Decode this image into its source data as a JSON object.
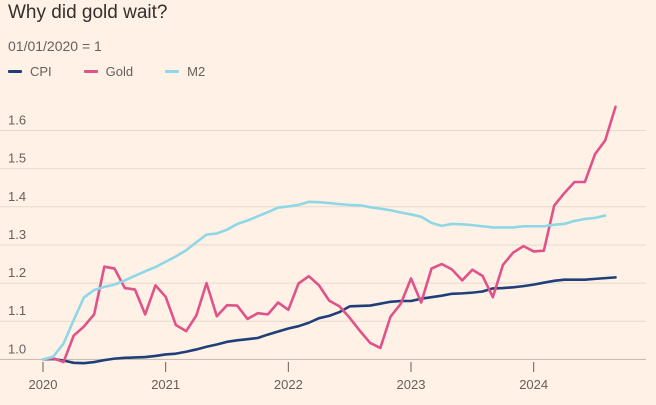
{
  "chart_data": {
    "type": "line",
    "title": "Why did gold wait?",
    "subtitle": "01/01/2020 = 1",
    "xlabel": "",
    "ylabel": "",
    "xlim": [
      2020.0,
      2024.72
    ],
    "ylim": [
      0.98,
      1.68
    ],
    "x_ticks": [
      2020,
      2021,
      2022,
      2023,
      2024
    ],
    "y_ticks": [
      1.0,
      1.1,
      1.2,
      1.3,
      1.4,
      1.5,
      1.6
    ],
    "grid": "horizontal",
    "legend": "top-left",
    "series": [
      {
        "name": "CPI",
        "color": "#1f3f7a",
        "x": [
          2020.0,
          2020.083,
          2020.167,
          2020.25,
          2020.333,
          2020.417,
          2020.5,
          2020.583,
          2020.667,
          2020.75,
          2020.833,
          2020.917,
          2021.0,
          2021.083,
          2021.167,
          2021.25,
          2021.333,
          2021.417,
          2021.5,
          2021.583,
          2021.667,
          2021.75,
          2021.833,
          2021.917,
          2022.0,
          2022.083,
          2022.167,
          2022.25,
          2022.333,
          2022.417,
          2022.5,
          2022.583,
          2022.667,
          2022.75,
          2022.833,
          2022.917,
          2023.0,
          2023.083,
          2023.167,
          2023.25,
          2023.333,
          2023.417,
          2023.5,
          2023.583,
          2023.667,
          2023.75,
          2023.833,
          2023.917,
          2024.0,
          2024.083,
          2024.167,
          2024.25,
          2024.333,
          2024.417,
          2024.5,
          2024.583,
          2024.667
        ],
        "values": [
          1.0,
          1.001,
          0.997,
          0.991,
          0.99,
          0.993,
          0.998,
          1.002,
          1.004,
          1.005,
          1.006,
          1.009,
          1.013,
          1.015,
          1.02,
          1.026,
          1.033,
          1.039,
          1.046,
          1.05,
          1.053,
          1.056,
          1.065,
          1.073,
          1.081,
          1.087,
          1.096,
          1.108,
          1.114,
          1.124,
          1.139,
          1.14,
          1.141,
          1.146,
          1.151,
          1.153,
          1.153,
          1.159,
          1.163,
          1.167,
          1.172,
          1.173,
          1.175,
          1.178,
          1.186,
          1.187,
          1.189,
          1.192,
          1.196,
          1.201,
          1.206,
          1.209,
          1.209,
          1.209,
          1.211,
          1.213,
          1.215
        ]
      },
      {
        "name": "Gold",
        "color": "#e0538a",
        "x": [
          2020.0,
          2020.083,
          2020.167,
          2020.25,
          2020.333,
          2020.417,
          2020.5,
          2020.583,
          2020.667,
          2020.75,
          2020.833,
          2020.917,
          2021.0,
          2021.083,
          2021.167,
          2021.25,
          2021.333,
          2021.417,
          2021.5,
          2021.583,
          2021.667,
          2021.75,
          2021.833,
          2021.917,
          2022.0,
          2022.083,
          2022.167,
          2022.25,
          2022.333,
          2022.417,
          2022.5,
          2022.583,
          2022.667,
          2022.75,
          2022.833,
          2022.917,
          2023.0,
          2023.083,
          2023.167,
          2023.25,
          2023.333,
          2023.417,
          2023.5,
          2023.583,
          2023.667,
          2023.75,
          2023.833,
          2023.917,
          2024.0,
          2024.083,
          2024.167,
          2024.25,
          2024.333,
          2024.417,
          2024.5,
          2024.583,
          2024.667
        ],
        "values": [
          1.0,
          1.003,
          0.993,
          1.062,
          1.086,
          1.118,
          1.243,
          1.238,
          1.187,
          1.183,
          1.118,
          1.194,
          1.164,
          1.09,
          1.074,
          1.115,
          1.2,
          1.113,
          1.142,
          1.141,
          1.106,
          1.121,
          1.118,
          1.149,
          1.13,
          1.199,
          1.218,
          1.194,
          1.154,
          1.139,
          1.109,
          1.075,
          1.043,
          1.03,
          1.112,
          1.146,
          1.212,
          1.149,
          1.238,
          1.25,
          1.236,
          1.207,
          1.235,
          1.219,
          1.163,
          1.248,
          1.28,
          1.297,
          1.283,
          1.285,
          1.403,
          1.436,
          1.465,
          1.465,
          1.538,
          1.574,
          1.662
        ]
      },
      {
        "name": "M2",
        "color": "#8dd7e6",
        "x": [
          2020.0,
          2020.083,
          2020.167,
          2020.25,
          2020.333,
          2020.417,
          2020.5,
          2020.583,
          2020.667,
          2020.75,
          2020.833,
          2020.917,
          2021.0,
          2021.083,
          2021.167,
          2021.25,
          2021.333,
          2021.417,
          2021.5,
          2021.583,
          2021.667,
          2021.75,
          2021.833,
          2021.917,
          2022.0,
          2022.083,
          2022.167,
          2022.25,
          2022.333,
          2022.417,
          2022.5,
          2022.583,
          2022.667,
          2022.75,
          2022.833,
          2022.917,
          2023.0,
          2023.083,
          2023.167,
          2023.25,
          2023.333,
          2023.417,
          2023.5,
          2023.583,
          2023.667,
          2023.75,
          2023.833,
          2023.917,
          2024.0,
          2024.083,
          2024.167,
          2024.25,
          2024.333,
          2024.417,
          2024.5,
          2024.583
        ],
        "values": [
          1.0,
          1.007,
          1.041,
          1.103,
          1.162,
          1.182,
          1.19,
          1.196,
          1.207,
          1.219,
          1.231,
          1.242,
          1.256,
          1.27,
          1.286,
          1.307,
          1.327,
          1.33,
          1.34,
          1.355,
          1.364,
          1.375,
          1.386,
          1.398,
          1.401,
          1.405,
          1.413,
          1.412,
          1.41,
          1.407,
          1.405,
          1.404,
          1.399,
          1.395,
          1.391,
          1.385,
          1.38,
          1.374,
          1.358,
          1.35,
          1.355,
          1.354,
          1.352,
          1.349,
          1.346,
          1.346,
          1.346,
          1.349,
          1.349,
          1.349,
          1.353,
          1.355,
          1.363,
          1.368,
          1.371,
          1.377
        ]
      }
    ]
  }
}
